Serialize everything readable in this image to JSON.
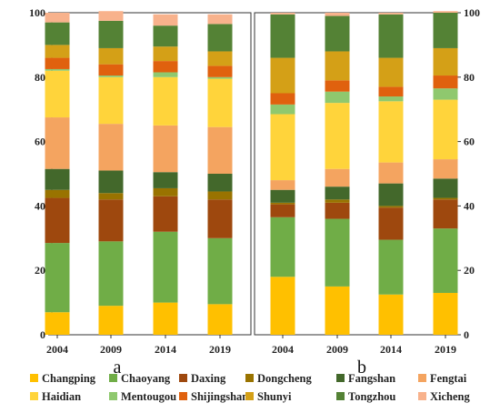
{
  "chart_data": [
    {
      "type": "bar",
      "stacked": true,
      "panel_label": "a",
      "categories": [
        "2004",
        "2009",
        "2014",
        "2019"
      ],
      "ylim": [
        0,
        100
      ],
      "yticks": [
        0,
        20,
        40,
        60,
        80,
        100
      ],
      "series": [
        {
          "name": "Changping",
          "color": "#FFC000",
          "values": [
            7,
            9,
            10,
            9.5
          ]
        },
        {
          "name": "Chaoyang",
          "color": "#70AD47",
          "values": [
            21.5,
            20,
            22,
            20.5
          ]
        },
        {
          "name": "Daxing",
          "color": "#9E480E",
          "values": [
            14,
            13,
            11,
            12
          ]
        },
        {
          "name": "Dongcheng",
          "color": "#997300",
          "values": [
            2.5,
            2,
            2.5,
            2.5
          ]
        },
        {
          "name": "Fangshan",
          "color": "#43682B",
          "values": [
            6.5,
            7,
            5,
            5.5
          ]
        },
        {
          "name": "Fengtai",
          "color": "#F4A460",
          "values": [
            16,
            14.5,
            14.5,
            14.5
          ]
        },
        {
          "name": "Haidian",
          "color": "#FFD43B",
          "values": [
            14.5,
            14.5,
            15,
            15
          ]
        },
        {
          "name": "Mentougou",
          "color": "#8FC86E",
          "values": [
            0.5,
            0.5,
            1.5,
            0.5
          ]
        },
        {
          "name": "Shijingshan",
          "color": "#E0610E",
          "values": [
            3.5,
            3.5,
            3.5,
            3.5
          ]
        },
        {
          "name": "Shunyi",
          "color": "#D4A017",
          "values": [
            4,
            5,
            4.5,
            4.5
          ]
        },
        {
          "name": "Tongzhou",
          "color": "#548235",
          "values": [
            7,
            8.5,
            6.5,
            8.5
          ]
        },
        {
          "name": "Xicheng",
          "color": "#F8B28C",
          "values": [
            3,
            3,
            3.5,
            3
          ]
        }
      ]
    },
    {
      "type": "bar",
      "stacked": true,
      "panel_label": "b",
      "categories": [
        "2004",
        "2009",
        "2014",
        "2019"
      ],
      "ylim": [
        0,
        100
      ],
      "yticks": [
        0,
        20,
        40,
        60,
        80,
        100
      ],
      "series": [
        {
          "name": "Changping",
          "color": "#FFC000",
          "values": [
            18,
            15,
            12.5,
            13
          ]
        },
        {
          "name": "Chaoyang",
          "color": "#70AD47",
          "values": [
            18.5,
            21,
            17,
            20
          ]
        },
        {
          "name": "Daxing",
          "color": "#9E480E",
          "values": [
            4,
            5,
            10,
            9
          ]
        },
        {
          "name": "Dongcheng",
          "color": "#997300",
          "values": [
            0.5,
            1,
            0.5,
            0.5
          ]
        },
        {
          "name": "Fangshan",
          "color": "#43682B",
          "values": [
            4,
            4,
            7,
            6
          ]
        },
        {
          "name": "Fengtai",
          "color": "#F4A460",
          "values": [
            3,
            5.5,
            6.5,
            6
          ]
        },
        {
          "name": "Haidian",
          "color": "#FFD43B",
          "values": [
            20.5,
            20.5,
            19,
            18.5
          ]
        },
        {
          "name": "Mentougou",
          "color": "#8FC86E",
          "values": [
            3,
            3.5,
            1.5,
            3.5
          ]
        },
        {
          "name": "Shijingshan",
          "color": "#E0610E",
          "values": [
            3.5,
            3.5,
            3,
            4
          ]
        },
        {
          "name": "Shunyi",
          "color": "#D4A017",
          "values": [
            11,
            9,
            9,
            8.5
          ]
        },
        {
          "name": "Tongzhou",
          "color": "#548235",
          "values": [
            13.5,
            11,
            13.5,
            11
          ]
        },
        {
          "name": "Xicheng",
          "color": "#F8B28C",
          "values": [
            0.5,
            1,
            0.5,
            0.5
          ]
        }
      ]
    }
  ]
}
